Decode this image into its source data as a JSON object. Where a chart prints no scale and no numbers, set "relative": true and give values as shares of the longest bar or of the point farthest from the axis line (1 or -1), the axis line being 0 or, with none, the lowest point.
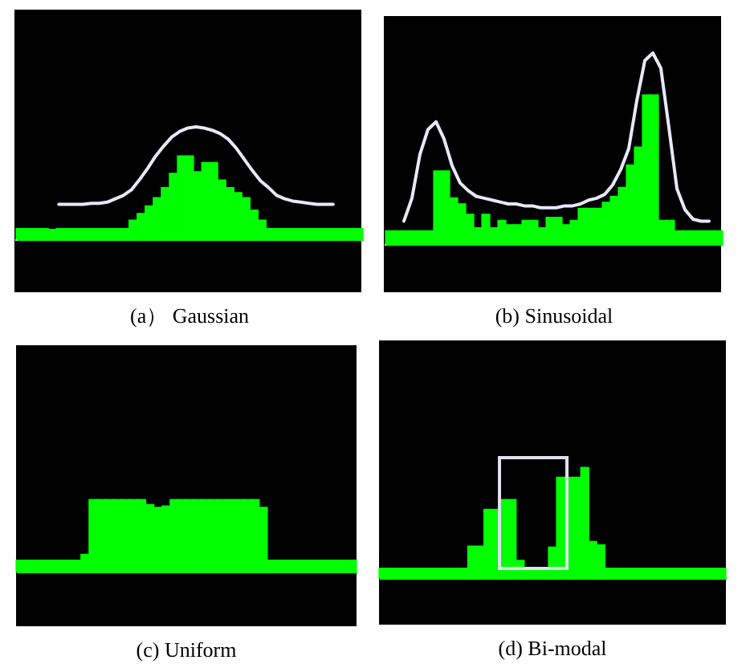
{
  "chart_data": [
    {
      "type": "bar",
      "title": "(a） Gaussian",
      "relative": true,
      "color": "#00ff00",
      "categories": [
        null,
        null,
        null,
        null,
        null,
        null,
        null,
        null,
        null,
        null,
        null,
        null,
        null,
        null,
        null,
        null,
        null,
        null,
        null,
        null,
        null,
        null,
        null,
        null,
        null,
        null,
        null,
        null,
        null,
        null,
        null,
        null,
        null,
        null,
        null,
        null,
        null,
        null,
        null,
        null,
        null,
        null,
        null
      ],
      "values": [
        0.13,
        0.13,
        0.13,
        0.13,
        0.12,
        0.13,
        0.13,
        0.13,
        0.13,
        0.13,
        0.13,
        0.13,
        0.13,
        0.13,
        0.23,
        0.31,
        0.4,
        0.5,
        0.62,
        0.79,
        1,
        1,
        0.81,
        0.92,
        0.92,
        0.71,
        0.62,
        0.56,
        0.5,
        0.35,
        0.23,
        0.13,
        0.13,
        0.13,
        0.13,
        0.13,
        0.13,
        0.13,
        0.13,
        0.13,
        0.13,
        0.13,
        0.13
      ]
    },
    {
      "type": "line",
      "relative": true,
      "color": "#e8e8ff",
      "categories": [
        null,
        null,
        null,
        null,
        null,
        null,
        null,
        null,
        null,
        null,
        null,
        null,
        null,
        null,
        null,
        null,
        null,
        null,
        null,
        null,
        null,
        null,
        null,
        null,
        null,
        null,
        null,
        null,
        null,
        null,
        null,
        null,
        null,
        null,
        null,
        null,
        null,
        null,
        null,
        null,
        null,
        null,
        null
      ],
      "values": [
        null,
        null,
        null,
        null,
        null,
        0.31,
        0.31,
        0.31,
        0.31,
        0.32,
        0.32,
        0.33,
        0.36,
        0.39,
        0.44,
        0.53,
        0.63,
        0.74,
        0.83,
        0.91,
        0.96,
        0.99,
        1,
        0.99,
        0.97,
        0.94,
        0.89,
        0.81,
        0.71,
        0.61,
        0.52,
        0.46,
        0.39,
        0.36,
        0.34,
        0.33,
        0.32,
        0.31,
        0.31,
        0.31,
        null,
        null,
        null
      ]
    },
    {
      "type": "bar",
      "title": "(b) Sinusoidal",
      "relative": true,
      "color": "#00ff00",
      "categories": [
        null,
        null,
        null,
        null,
        null,
        null,
        null,
        null,
        null,
        null,
        null,
        null,
        null,
        null,
        null,
        null,
        null,
        null,
        null,
        null,
        null,
        null,
        null,
        null,
        null,
        null,
        null,
        null,
        null,
        null,
        null,
        null,
        null,
        null,
        null,
        null,
        null,
        null,
        null,
        null,
        null,
        null
      ],
      "values": [
        0.09,
        0.09,
        0.09,
        0.09,
        0.09,
        0.09,
        0.49,
        0.49,
        0.31,
        0.27,
        0.2,
        0.11,
        0.2,
        0.11,
        0.16,
        0.13,
        0.13,
        0.16,
        0.16,
        0.11,
        0.18,
        0.18,
        0.13,
        0.16,
        0.24,
        0.24,
        0.24,
        0.28,
        0.32,
        0.38,
        0.53,
        0.65,
        1,
        1,
        0.16,
        0.16,
        0.09,
        0.09,
        0.09,
        0.09,
        0.09,
        0.09
      ]
    },
    {
      "type": "line",
      "relative": true,
      "color": "#e8e8ff",
      "categories": [
        null,
        null,
        null,
        null,
        null,
        null,
        null,
        null,
        null,
        null,
        null,
        null,
        null,
        null,
        null,
        null,
        null,
        null,
        null,
        null,
        null,
        null,
        null,
        null,
        null,
        null,
        null,
        null,
        null,
        null,
        null,
        null,
        null,
        null,
        null,
        null,
        null,
        null,
        null,
        null,
        null,
        null
      ],
      "values": [
        null,
        null,
        0.12,
        0.24,
        0.47,
        0.6,
        0.64,
        0.55,
        0.41,
        0.32,
        0.28,
        0.25,
        0.24,
        0.23,
        0.22,
        0.21,
        0.21,
        0.2,
        0.2,
        0.19,
        0.19,
        0.19,
        0.2,
        0.2,
        0.21,
        0.23,
        0.24,
        0.26,
        0.31,
        0.39,
        0.5,
        0.75,
        0.96,
        1,
        0.92,
        0.61,
        0.29,
        0.18,
        0.13,
        0.12,
        0.12,
        null
      ]
    },
    {
      "type": "bar",
      "title": "(c) Uniform",
      "relative": true,
      "color": "#00ff00",
      "categories": [
        null,
        null,
        null,
        null,
        null,
        null,
        null,
        null,
        null,
        null,
        null,
        null,
        null,
        null,
        null,
        null,
        null,
        null,
        null,
        null,
        null,
        null,
        null,
        null,
        null,
        null,
        null,
        null,
        null,
        null,
        null,
        null,
        null,
        null,
        null,
        null,
        null,
        null,
        null,
        null,
        null,
        null
      ],
      "values": [
        0.16,
        0.16,
        0.16,
        0.16,
        0.16,
        0.16,
        0.16,
        0.16,
        0.24,
        1,
        1,
        1,
        1,
        1,
        1,
        1,
        0.93,
        0.89,
        0.91,
        1,
        1,
        1,
        1,
        1,
        1,
        1,
        1,
        1,
        1,
        1,
        0.89,
        0.16,
        0.16,
        0.16,
        0.16,
        0.16,
        0.16,
        0.16,
        0.16,
        0.16,
        0.16,
        0.16
      ]
    },
    {
      "type": "bar",
      "title": "(d) Bi-modal",
      "relative": true,
      "color": "#00ff00",
      "categories": [
        null,
        null,
        null,
        null,
        null,
        null,
        null,
        null,
        null,
        null,
        null,
        null,
        null,
        null,
        null,
        null,
        null,
        null,
        null,
        null,
        null,
        null,
        null,
        null,
        null,
        null,
        null,
        null,
        null,
        null,
        null,
        null,
        null,
        null,
        null,
        null,
        null,
        null,
        null,
        null,
        null,
        null,
        null
      ],
      "values": [
        0.09,
        0.09,
        0.09,
        0.09,
        0.09,
        0.09,
        0.09,
        0.09,
        0.09,
        0.09,
        0.09,
        0.29,
        0.29,
        0.62,
        0.62,
        0.71,
        0.71,
        0.16,
        0.09,
        0.09,
        0.09,
        0.28,
        0.91,
        0.91,
        0.91,
        1,
        0.33,
        0.3,
        0.09,
        0.09,
        0.09,
        0.09,
        0.09,
        0.09,
        0.09,
        0.09,
        0.09,
        0.09,
        0.09,
        0.09,
        0.09,
        0.09,
        0.09
      ]
    }
  ]
}
